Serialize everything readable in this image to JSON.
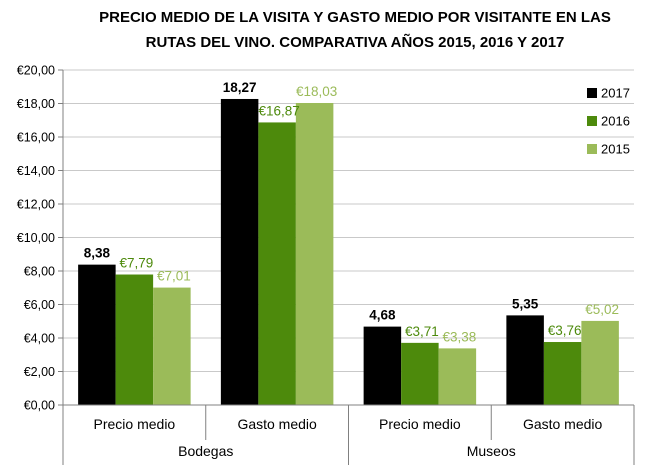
{
  "chart_data": {
    "type": "bar",
    "title": [
      "PRECIO MEDIO DE LA VISITA Y GASTO MEDIO POR VISITANTE EN LAS",
      "RUTAS DEL VINO. COMPARATIVA AÑOS 2015, 2016 Y 2017"
    ],
    "groups": [
      "Bodegas",
      "Museos"
    ],
    "categories": [
      "Precio medio",
      "Gasto medio",
      "Precio medio",
      "Gasto medio"
    ],
    "category_group": [
      0,
      0,
      1,
      1
    ],
    "ylim": [
      0,
      20
    ],
    "yticks": [
      0,
      2,
      4,
      6,
      8,
      10,
      12,
      14,
      16,
      18,
      20
    ],
    "ytick_labels": [
      "€0,00",
      "€2,00",
      "€4,00",
      "€6,00",
      "€8,00",
      "€10,00",
      "€12,00",
      "€14,00",
      "€16,00",
      "€18,00",
      "€20,00"
    ],
    "grid": true,
    "legend_position": "right",
    "series": [
      {
        "name": "2017",
        "color": "#000000",
        "label_color": "#000000",
        "values": [
          8.38,
          18.27,
          4.68,
          5.35
        ],
        "labels": [
          "8,38",
          "18,27",
          "4,68",
          "5,35"
        ]
      },
      {
        "name": "2016",
        "color": "#4d8a0c",
        "label_color": "#4d8a0c",
        "values": [
          7.79,
          16.87,
          3.71,
          3.76
        ],
        "labels": [
          "€7,79",
          "€16,87",
          "€3,71",
          "€3,76"
        ]
      },
      {
        "name": "2015",
        "color": "#9bbb59",
        "label_color": "#9bbb59",
        "values": [
          7.01,
          18.03,
          3.38,
          5.02
        ],
        "labels": [
          "€7,01",
          "€18,03",
          "€3,38",
          "€5,02"
        ]
      }
    ]
  }
}
